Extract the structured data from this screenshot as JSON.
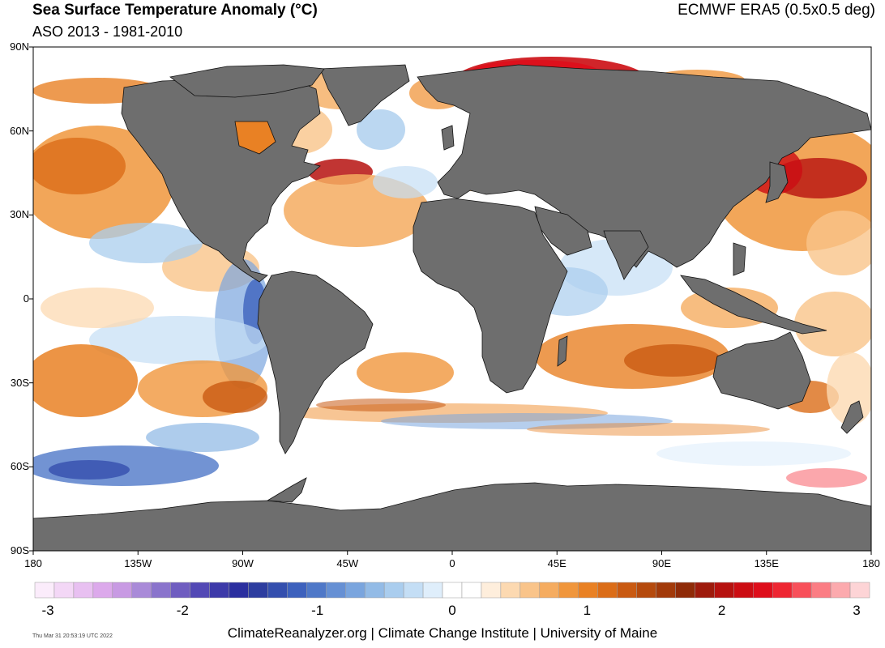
{
  "header": {
    "title": "Sea Surface Temperature Anomaly (°C)",
    "subtitle": "ASO 2013 - 1981-2010",
    "source": "ECMWF ERA5 (0.5x0.5 deg)"
  },
  "map": {
    "lat_labels": [
      "90N",
      "60N",
      "30N",
      "0",
      "30S",
      "60S",
      "90S"
    ],
    "lon_labels": [
      "180",
      "135W",
      "90W",
      "45W",
      "0",
      "45E",
      "90E",
      "135E",
      "180"
    ],
    "colors": {
      "land": "#6e6e6e",
      "coast": "#111111",
      "neutral_ocean": "#ffffff"
    }
  },
  "colorbar": {
    "colors": [
      "#fbecfb",
      "#f3d7f6",
      "#e8c0f1",
      "#dca9eb",
      "#c89ae3",
      "#a98ad8",
      "#8a74cc",
      "#6f5dc0",
      "#5349b5",
      "#3d3aa9",
      "#2b2f9f",
      "#2d3d9f",
      "#344fae",
      "#3d61bd",
      "#4f78c8",
      "#6690d4",
      "#7aa5de",
      "#93bbe6",
      "#aacdee",
      "#c4def5",
      "#dfeefb",
      "#ffffff",
      "#ffffff",
      "#feeedc",
      "#fcd9b1",
      "#f9c48a",
      "#f5ac60",
      "#f0963c",
      "#e98124",
      "#db6d18",
      "#c95a12",
      "#b54a0d",
      "#a23a0a",
      "#8f2b08",
      "#9e1b0c",
      "#b6120f",
      "#cc0d13",
      "#de0e1b",
      "#ee2632",
      "#f8505a",
      "#fb7d84",
      "#fcaaae",
      "#fdd4d6"
    ],
    "tick_labels": [
      "-3",
      "-2",
      "-1",
      "0",
      "1",
      "2",
      "3"
    ]
  },
  "footer": {
    "timestamp": "Thu Mar 31 20:53:19 UTC 2022",
    "credit": "ClimateReanalyzer.org | Climate Change Institute | University of Maine"
  }
}
